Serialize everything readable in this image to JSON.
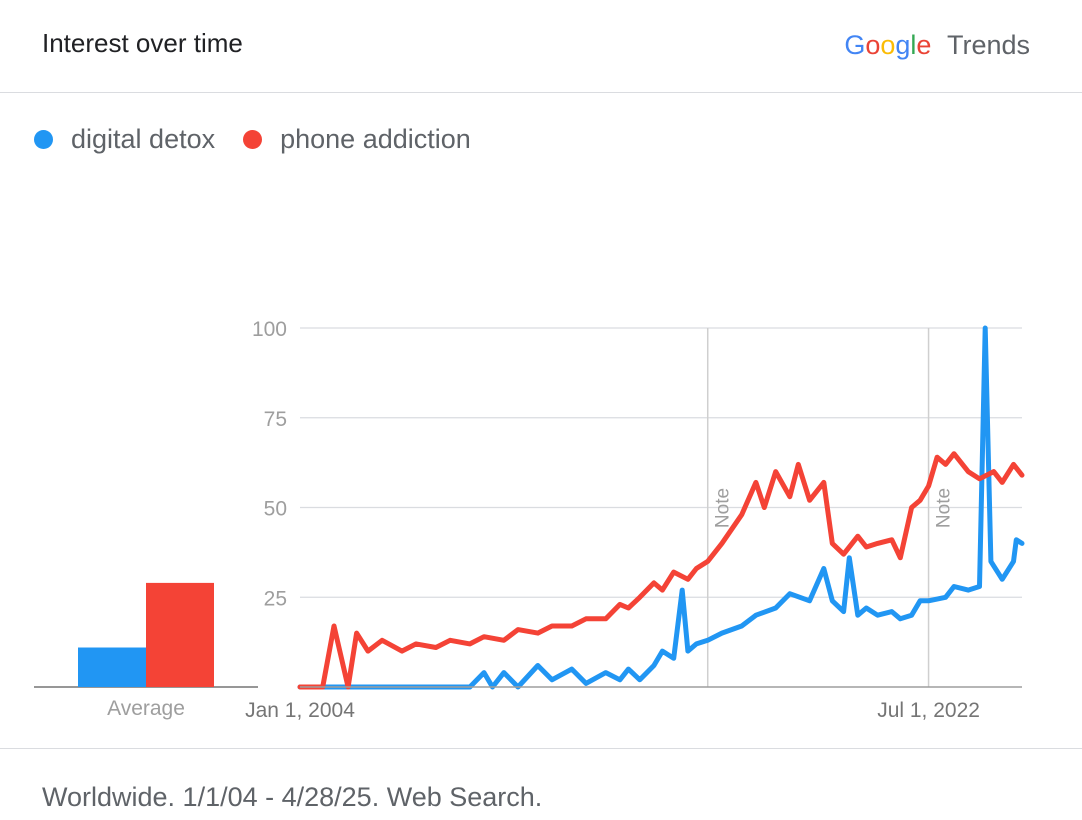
{
  "header": {
    "title": "Interest over time",
    "logo": {
      "letters": [
        {
          "ch": "G",
          "color": "#4285F4"
        },
        {
          "ch": "o",
          "color": "#EA4335"
        },
        {
          "ch": "o",
          "color": "#FBBC05"
        },
        {
          "ch": "g",
          "color": "#4285F4"
        },
        {
          "ch": "l",
          "color": "#34A853"
        },
        {
          "ch": "e",
          "color": "#EA4335"
        }
      ],
      "suffix": "Trends"
    }
  },
  "legend": [
    {
      "label": "digital detox",
      "color": "#2196F3"
    },
    {
      "label": "phone addiction",
      "color": "#F44336"
    }
  ],
  "footer": {
    "text": "Worldwide. 1/1/04 - 4/28/25. Web Search."
  },
  "chart_data": {
    "type": "line",
    "x_start": "2004-01",
    "x_end": "2025-04",
    "x_ticks": [
      {
        "label": "Jan 1, 2004",
        "date": "2004-01"
      },
      {
        "label": "Jul 1, 2022",
        "date": "2022-07"
      }
    ],
    "y_ticks": [
      25,
      50,
      75,
      100
    ],
    "ylim": [
      0,
      100
    ],
    "grid": true,
    "notes": [
      {
        "label": "Note",
        "date": "2016-01"
      },
      {
        "label": "Note",
        "date": "2022-07"
      }
    ],
    "average": {
      "label": "Average",
      "values": [
        {
          "series": "digital detox",
          "value": 11
        },
        {
          "series": "phone addiction",
          "value": 29
        }
      ]
    },
    "series": [
      {
        "name": "digital detox",
        "color": "#2196F3",
        "points": [
          [
            "2004-01",
            0
          ],
          [
            "2006-01",
            0
          ],
          [
            "2008-01",
            0
          ],
          [
            "2009-01",
            0
          ],
          [
            "2009-06",
            4
          ],
          [
            "2009-09",
            0
          ],
          [
            "2010-01",
            4
          ],
          [
            "2010-06",
            0
          ],
          [
            "2011-01",
            6
          ],
          [
            "2011-06",
            2
          ],
          [
            "2012-01",
            5
          ],
          [
            "2012-06",
            1
          ],
          [
            "2013-01",
            4
          ],
          [
            "2013-06",
            2
          ],
          [
            "2013-09",
            5
          ],
          [
            "2014-01",
            2
          ],
          [
            "2014-06",
            6
          ],
          [
            "2014-09",
            10
          ],
          [
            "2015-01",
            8
          ],
          [
            "2015-04",
            27
          ],
          [
            "2015-06",
            10
          ],
          [
            "2015-09",
            12
          ],
          [
            "2016-01",
            13
          ],
          [
            "2016-06",
            15
          ],
          [
            "2017-01",
            17
          ],
          [
            "2017-06",
            20
          ],
          [
            "2018-01",
            22
          ],
          [
            "2018-06",
            26
          ],
          [
            "2019-01",
            24
          ],
          [
            "2019-06",
            33
          ],
          [
            "2019-09",
            24
          ],
          [
            "2020-01",
            21
          ],
          [
            "2020-03",
            36
          ],
          [
            "2020-06",
            20
          ],
          [
            "2020-09",
            22
          ],
          [
            "2021-01",
            20
          ],
          [
            "2021-06",
            21
          ],
          [
            "2021-09",
            19
          ],
          [
            "2022-01",
            20
          ],
          [
            "2022-04",
            24
          ],
          [
            "2022-07",
            24
          ],
          [
            "2023-01",
            25
          ],
          [
            "2023-04",
            28
          ],
          [
            "2023-09",
            27
          ],
          [
            "2024-01",
            28
          ],
          [
            "2024-03",
            100
          ],
          [
            "2024-05",
            35
          ],
          [
            "2024-09",
            30
          ],
          [
            "2025-01",
            35
          ],
          [
            "2025-02",
            41
          ],
          [
            "2025-04",
            40
          ]
        ]
      },
      {
        "name": "phone addiction",
        "color": "#F44336",
        "points": [
          [
            "2004-01",
            0
          ],
          [
            "2004-09",
            0
          ],
          [
            "2005-01",
            17
          ],
          [
            "2005-06",
            0
          ],
          [
            "2005-09",
            15
          ],
          [
            "2006-01",
            10
          ],
          [
            "2006-06",
            13
          ],
          [
            "2007-01",
            10
          ],
          [
            "2007-06",
            12
          ],
          [
            "2008-01",
            11
          ],
          [
            "2008-06",
            13
          ],
          [
            "2009-01",
            12
          ],
          [
            "2009-06",
            14
          ],
          [
            "2010-01",
            13
          ],
          [
            "2010-06",
            16
          ],
          [
            "2011-01",
            15
          ],
          [
            "2011-06",
            17
          ],
          [
            "2012-01",
            17
          ],
          [
            "2012-06",
            19
          ],
          [
            "2013-01",
            19
          ],
          [
            "2013-06",
            23
          ],
          [
            "2013-09",
            22
          ],
          [
            "2014-01",
            25
          ],
          [
            "2014-06",
            29
          ],
          [
            "2014-09",
            27
          ],
          [
            "2015-01",
            32
          ],
          [
            "2015-06",
            30
          ],
          [
            "2015-09",
            33
          ],
          [
            "2016-01",
            35
          ],
          [
            "2016-06",
            40
          ],
          [
            "2017-01",
            48
          ],
          [
            "2017-06",
            57
          ],
          [
            "2017-09",
            50
          ],
          [
            "2018-01",
            60
          ],
          [
            "2018-06",
            53
          ],
          [
            "2018-09",
            62
          ],
          [
            "2019-01",
            52
          ],
          [
            "2019-06",
            57
          ],
          [
            "2019-09",
            40
          ],
          [
            "2020-01",
            37
          ],
          [
            "2020-06",
            42
          ],
          [
            "2020-09",
            39
          ],
          [
            "2021-01",
            40
          ],
          [
            "2021-06",
            41
          ],
          [
            "2021-09",
            36
          ],
          [
            "2022-01",
            50
          ],
          [
            "2022-04",
            52
          ],
          [
            "2022-07",
            56
          ],
          [
            "2022-10",
            64
          ],
          [
            "2023-01",
            62
          ],
          [
            "2023-04",
            65
          ],
          [
            "2023-09",
            60
          ],
          [
            "2024-01",
            58
          ],
          [
            "2024-06",
            60
          ],
          [
            "2024-09",
            57
          ],
          [
            "2025-01",
            62
          ],
          [
            "2025-04",
            59
          ]
        ]
      }
    ]
  }
}
